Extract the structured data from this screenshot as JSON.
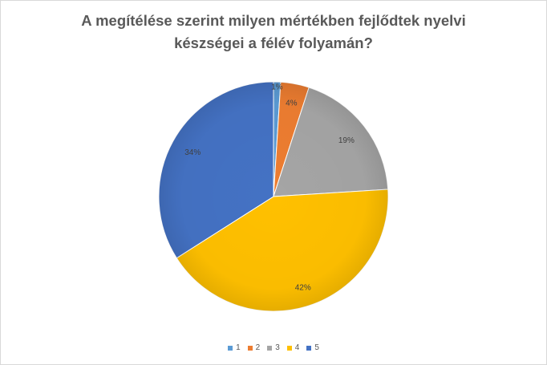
{
  "chart_data": {
    "type": "pie",
    "title_lines": [
      "A megítélése szerint milyen mértékben fejlődtek nyelvi",
      "készségei a félév folyamán?"
    ],
    "categories": [
      "1",
      "2",
      "3",
      "4",
      "5"
    ],
    "values": [
      1,
      4,
      19,
      42,
      34
    ],
    "data_labels": [
      "1%",
      "4%",
      "19%",
      "42%",
      "34%"
    ],
    "colors": [
      "#5b9bd5",
      "#ed7d31",
      "#a5a5a5",
      "#ffc000",
      "#4472c4"
    ],
    "legend_position": "bottom"
  }
}
